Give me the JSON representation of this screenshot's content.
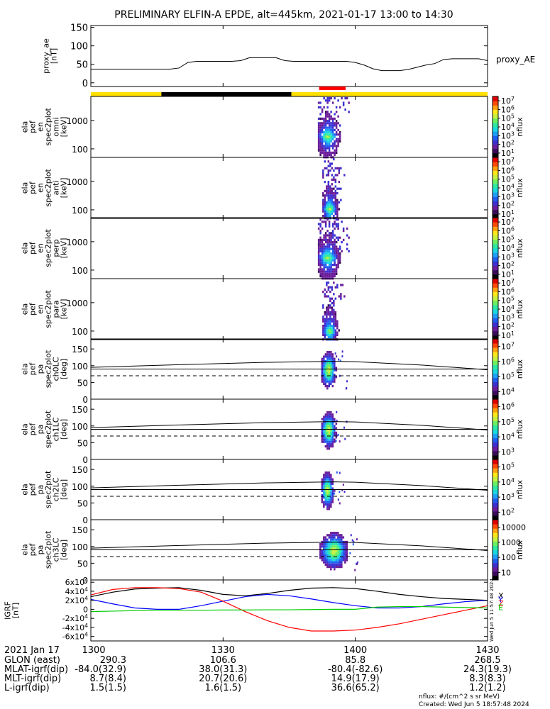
{
  "title": "PRELIMINARY ELFIN-A EPDE, alt=445km, 2021-01-17 13:00 to 14:30",
  "colors": {
    "band_yellow": "#ffe000",
    "band_black": "#000000",
    "band_red": "#ff0000",
    "igrf_x": "#000000",
    "igrf_y": "#0000ff",
    "igrf_z": "#ff0000",
    "igrf_e": "#00cc00"
  },
  "colormap": [
    "#000000",
    "#3b0b5a",
    "#6a1c9a",
    "#3d2fd1",
    "#1f5ff0",
    "#1ea0f5",
    "#18d8e0",
    "#2ee8a0",
    "#6cf060",
    "#c8f040",
    "#ffe818",
    "#ffa010",
    "#ff4a08",
    "#e00000"
  ],
  "time_axis": {
    "start_min": 0,
    "end_min": 90,
    "ticks": [
      {
        "min": 0,
        "label": "1300"
      },
      {
        "min": 30,
        "label": "1330"
      },
      {
        "min": 60,
        "label": "1400"
      },
      {
        "min": 90,
        "label": "1430"
      }
    ]
  },
  "science_band": {
    "segments": [
      {
        "start_min": 0,
        "end_min": 16,
        "color": "#ffe000"
      },
      {
        "start_min": 16,
        "end_min": 45.5,
        "color": "#000000"
      },
      {
        "start_min": 45.5,
        "end_min": 90,
        "color": "#ffe000"
      }
    ],
    "red_marker": {
      "start_min": 51.8,
      "end_min": 57.8
    }
  },
  "chart_data": [
    {
      "type": "line",
      "name": "proxy_ae",
      "ylabel": [
        "proxy_ae",
        "[nT]"
      ],
      "legend": "proxy_AE",
      "ylim": [
        -10,
        155
      ],
      "yticks": [
        0,
        50,
        100,
        150
      ],
      "x_min": [
        0,
        2,
        4,
        6,
        8,
        10,
        12,
        14,
        16,
        18,
        20,
        22,
        24,
        26,
        28,
        30,
        32,
        34,
        36,
        38,
        40,
        42,
        44,
        46,
        48,
        50,
        52,
        54,
        56,
        58,
        60,
        62,
        64,
        66,
        68,
        70,
        72,
        74,
        76,
        78,
        80,
        82,
        84,
        86,
        88,
        90
      ],
      "values": [
        37,
        37,
        37,
        37,
        37,
        37,
        37,
        37,
        37,
        37,
        40,
        55,
        58,
        58,
        58,
        58,
        58,
        60,
        68,
        68,
        68,
        68,
        60,
        58,
        58,
        58,
        58,
        58,
        58,
        58,
        55,
        48,
        38,
        33,
        33,
        33,
        36,
        42,
        48,
        52,
        63,
        65,
        65,
        65,
        65,
        60
      ]
    },
    {
      "type": "heatmap",
      "name": "ela_pef_en_spec2plot_omni",
      "ylabel": [
        "ela",
        "pef",
        "en",
        "spec2plot",
        "omni",
        "[keV]"
      ],
      "y_scale": "log",
      "ylim": [
        50,
        7000
      ],
      "yticks": [
        100,
        1000
      ],
      "colorbar": {
        "label": "nflux",
        "scale": "log",
        "ticks": [
          "10^1",
          "10^2",
          "10^3",
          "10^4",
          "10^5",
          "10^6",
          "10^7"
        ]
      },
      "active_min": [
        51.5,
        58.5
      ],
      "peak_keV": 300
    },
    {
      "type": "heatmap",
      "name": "ela_pef_en_spec2plot_anti",
      "ylabel": [
        "ela",
        "pef",
        "en",
        "spec2plot",
        "anti",
        "[keV]"
      ],
      "y_scale": "log",
      "ylim": [
        50,
        7000
      ],
      "yticks": [
        100,
        1000
      ],
      "colorbar": {
        "label": "nflux",
        "scale": "log",
        "ticks": [
          "10^1",
          "10^2",
          "10^3",
          "10^4",
          "10^5",
          "10^6",
          "10^7"
        ]
      },
      "active_min": [
        52.5,
        57.5
      ],
      "peak_keV": 120
    },
    {
      "type": "heatmap",
      "name": "ela_pef_en_spec2plot_perp",
      "ylabel": [
        "ela",
        "pef",
        "en",
        "spec2plot",
        "perp",
        "[keV]"
      ],
      "y_scale": "log",
      "ylim": [
        50,
        7000
      ],
      "yticks": [
        100,
        1000
      ],
      "colorbar": {
        "label": "nflux",
        "scale": "log",
        "ticks": [
          "10^1",
          "10^2",
          "10^3",
          "10^4",
          "10^5",
          "10^6",
          "10^7"
        ]
      },
      "active_min": [
        51.5,
        58.5
      ],
      "peak_keV": 300
    },
    {
      "type": "heatmap",
      "name": "ela_pef_en_spec2plot_para",
      "ylabel": [
        "ela",
        "pef",
        "en",
        "spec2plot",
        "para",
        "[keV]"
      ],
      "y_scale": "log",
      "ylim": [
        50,
        7000
      ],
      "yticks": [
        100,
        1000
      ],
      "colorbar": {
        "label": "nflux",
        "scale": "log",
        "ticks": [
          "10^1",
          "10^2",
          "10^3",
          "10^4",
          "10^5",
          "10^6",
          "10^7"
        ]
      },
      "active_min": [
        52.5,
        57.5
      ],
      "peak_keV": 110
    },
    {
      "type": "heatmap",
      "name": "ela_pef_pa_spec2plot_ch0LC",
      "ylabel": [
        "ela",
        "pef",
        "pa",
        "spec2plot",
        "ch0LC",
        "[deg]"
      ],
      "ylim": [
        0,
        180
      ],
      "yticks": [
        0,
        50,
        100,
        150
      ],
      "colorbar": {
        "label": "nflux",
        "scale": "log",
        "ticks": [
          "10^4",
          "10^5",
          "10^6",
          "10^7"
        ]
      },
      "loss_cone_solid": [
        [
          0,
          95
        ],
        [
          20,
          103
        ],
        [
          40,
          110
        ],
        [
          55,
          113
        ],
        [
          60,
          112
        ],
        [
          75,
          102
        ],
        [
          90,
          88
        ]
      ],
      "loss_cone_dashed": [
        [
          0,
          70
        ],
        [
          90,
          70
        ]
      ],
      "blob_min": [
        52.5,
        55.0
      ]
    },
    {
      "type": "heatmap",
      "name": "ela_pef_pa_spec2plot_ch1LC",
      "ylabel": [
        "ela",
        "pef",
        "pa",
        "spec2plot",
        "ch1LC",
        "[deg]"
      ],
      "ylim": [
        0,
        180
      ],
      "yticks": [
        0,
        50,
        100,
        150
      ],
      "colorbar": {
        "label": "nflux",
        "scale": "log",
        "ticks": [
          "10^3",
          "10^4",
          "10^5",
          "10^6"
        ]
      },
      "loss_cone_solid": [
        [
          0,
          95
        ],
        [
          20,
          103
        ],
        [
          40,
          110
        ],
        [
          55,
          113
        ],
        [
          60,
          112
        ],
        [
          75,
          102
        ],
        [
          90,
          88
        ]
      ],
      "loss_cone_dashed": [
        [
          0,
          70
        ],
        [
          90,
          70
        ]
      ],
      "blob_min": [
        52.5,
        55.0
      ]
    },
    {
      "type": "heatmap",
      "name": "ela_pef_pa_spec2plot_ch2LC",
      "ylabel": [
        "ela",
        "pef",
        "pa",
        "spec2plot",
        "ch2LC",
        "[deg]"
      ],
      "ylim": [
        0,
        180
      ],
      "yticks": [
        0,
        50,
        100,
        150
      ],
      "colorbar": {
        "label": "nflux",
        "scale": "log",
        "ticks": [
          "10^2",
          "10^3",
          "10^4",
          "10^5"
        ]
      },
      "loss_cone_solid": [
        [
          0,
          95
        ],
        [
          20,
          103
        ],
        [
          40,
          110
        ],
        [
          55,
          113
        ],
        [
          60,
          112
        ],
        [
          75,
          102
        ],
        [
          90,
          88
        ]
      ],
      "loss_cone_dashed": [
        [
          0,
          70
        ],
        [
          90,
          70
        ]
      ],
      "blob_min": [
        52.5,
        54.5
      ]
    },
    {
      "type": "heatmap",
      "name": "ela_pef_pa_spec2plot_ch3LC",
      "ylabel": [
        "ela",
        "pef",
        "pa",
        "spec2plot",
        "ch3LC",
        "[deg]"
      ],
      "ylim": [
        0,
        180
      ],
      "yticks": [
        0,
        50,
        100,
        150
      ],
      "colorbar": {
        "label": "nflux",
        "scale": "log",
        "ticks": [
          "10",
          "100",
          "1000",
          "10000"
        ]
      },
      "loss_cone_solid": [
        [
          0,
          95
        ],
        [
          20,
          103
        ],
        [
          40,
          110
        ],
        [
          55,
          113
        ],
        [
          60,
          112
        ],
        [
          75,
          102
        ],
        [
          90,
          88
        ]
      ],
      "loss_cone_dashed": [
        [
          0,
          70
        ],
        [
          90,
          70
        ]
      ],
      "blob_min": [
        52.5,
        57.5
      ]
    },
    {
      "type": "line",
      "name": "igrf",
      "ylabel": [
        "IGRF",
        "[nT]"
      ],
      "ylim": [
        -70000,
        65000
      ],
      "yticks": [
        {
          "v": -60000,
          "label": "-6x10^4"
        },
        {
          "v": -40000,
          "label": "-4x10^4"
        },
        {
          "v": -20000,
          "label": "-2x10^4"
        },
        {
          "v": 0,
          "label": "0"
        },
        {
          "v": 20000,
          "label": "2x10^4"
        },
        {
          "v": 40000,
          "label": "4x10^4"
        },
        {
          "v": 60000,
          "label": "6x10^4"
        }
      ],
      "x_min": [
        0,
        5,
        10,
        15,
        20,
        25,
        30,
        35,
        40,
        45,
        50,
        55,
        60,
        65,
        70,
        75,
        80,
        85,
        90
      ],
      "series": [
        {
          "name": "X",
          "color": "#000000",
          "values": [
            28000,
            38000,
            45000,
            47000,
            48000,
            42000,
            33000,
            30000,
            35000,
            42000,
            47000,
            48000,
            46000,
            40000,
            33000,
            28000,
            24000,
            22000,
            20000
          ]
        },
        {
          "name": "Y",
          "color": "#0000ff",
          "values": [
            22000,
            12000,
            3000,
            0,
            0,
            8000,
            18000,
            28000,
            33000,
            30000,
            23000,
            15000,
            8000,
            3000,
            3000,
            6000,
            12000,
            17000,
            20000
          ]
        },
        {
          "name": "Z",
          "color": "#ff0000",
          "values": [
            32000,
            44000,
            48000,
            48000,
            46000,
            38000,
            18000,
            -5000,
            -25000,
            -40000,
            -48000,
            -48000,
            -46000,
            -40000,
            -32000,
            -22000,
            -12000,
            -2000,
            8000
          ]
        },
        {
          "name": "E",
          "color": "#00cc00",
          "values": [
            -5000,
            -4000,
            -3000,
            -2000,
            -2000,
            -2000,
            -1500,
            -1500,
            -1000,
            -1000,
            -500,
            0,
            0,
            5000,
            6000,
            6000,
            5000,
            4000,
            3000
          ]
        }
      ],
      "legend_letters": [
        "X",
        "Y",
        "Z",
        "E"
      ],
      "side_text": "Wed Jun  5 11:57:48 2024"
    }
  ],
  "footer": {
    "date_label": "2021 Jan 17",
    "rows": [
      {
        "label": "GLON (east)",
        "values": [
          "290.3",
          "106.6",
          "85.8",
          "268.5"
        ]
      },
      {
        "label": "MLAT-igrf(dip)",
        "values": [
          "-84.0(32.9)",
          "38.0(31.3)",
          "-80.4(-82.6)",
          "24.3(19.3)"
        ]
      },
      {
        "label": "MLT-igrf(dip)",
        "values": [
          "8.7(8.4)",
          "20.7(20.6)",
          "14.9(17.9)",
          "8.3(8.3)"
        ]
      },
      {
        "label": "L-igrf(dip)",
        "values": [
          "1.5(1.5)",
          "1.6(1.5)",
          "36.6(65.2)",
          "1.2(1.2)"
        ]
      }
    ],
    "units_note": "nflux: #/(cm^2 s sr MeV)",
    "created": "Created: Wed Jun  5 18:57:48 2024"
  }
}
